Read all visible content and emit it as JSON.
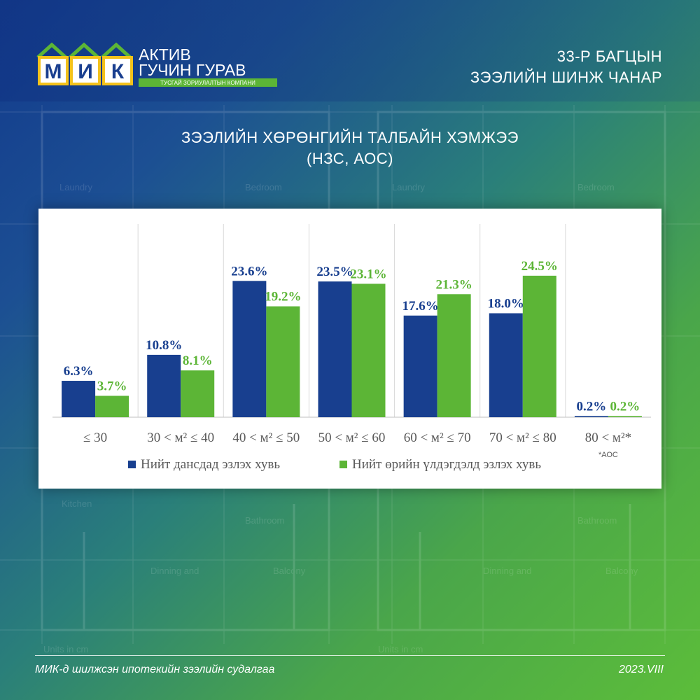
{
  "header": {
    "logo": {
      "letters": [
        "М",
        "И",
        "К"
      ],
      "line1": "АКТИВ",
      "line2": "ГУЧИН ГУРАВ",
      "tagline": "ТУСГАЙ ЗОРИУЛАЛТЫН КОМПАНИ"
    },
    "title_line1": "33-Р БАГЦЫН",
    "title_line2": "ЗЭЭЛИЙН ШИНЖ ЧАНАР"
  },
  "footer": {
    "left": "МИК-д шилжсэн ипотекийн зээлийн судалгаа",
    "right": "2023.VIII"
  },
  "colors": {
    "series1": "#183f8f",
    "series2": "#5cb536",
    "logo_green": "#5cb536",
    "logo_blue": "#1a3f8f",
    "logo_yellow": "#f4c21b"
  },
  "chart_data": {
    "type": "bar",
    "title_line1": "ЗЭЭЛИЙН ХӨРӨНГИЙН ТАЛБАЙН ХЭМЖЭЭ",
    "title_line2": "(НЗС, АОС)",
    "categories": [
      "≤ 30",
      "30 < м² ≤ 40",
      "40 < м² ≤ 50",
      "50 < м² ≤ 60",
      "60 < м² ≤ 70",
      "70 < м² ≤ 80",
      "80 < м²*"
    ],
    "series": [
      {
        "name": "Нийт дансдад эзлэх хувь",
        "values": [
          6.3,
          10.8,
          23.6,
          23.5,
          17.6,
          18.0,
          0.2
        ],
        "labels": [
          "6.3%",
          "10.8%",
          "23.6%",
          "23.5%",
          "17.6%",
          "18.0%",
          "0.2%"
        ]
      },
      {
        "name": "Нийт өрийн үлдэгдэлд эзлэх хувь",
        "values": [
          3.7,
          8.1,
          19.2,
          23.1,
          21.3,
          24.5,
          0.2
        ],
        "labels": [
          "3.7%",
          "8.1%",
          "19.2%",
          "23.1%",
          "21.3%",
          "24.5%",
          "0.2%"
        ]
      }
    ],
    "ylim": [
      0,
      30
    ],
    "note": "*АОС",
    "legend_position": "bottom"
  }
}
